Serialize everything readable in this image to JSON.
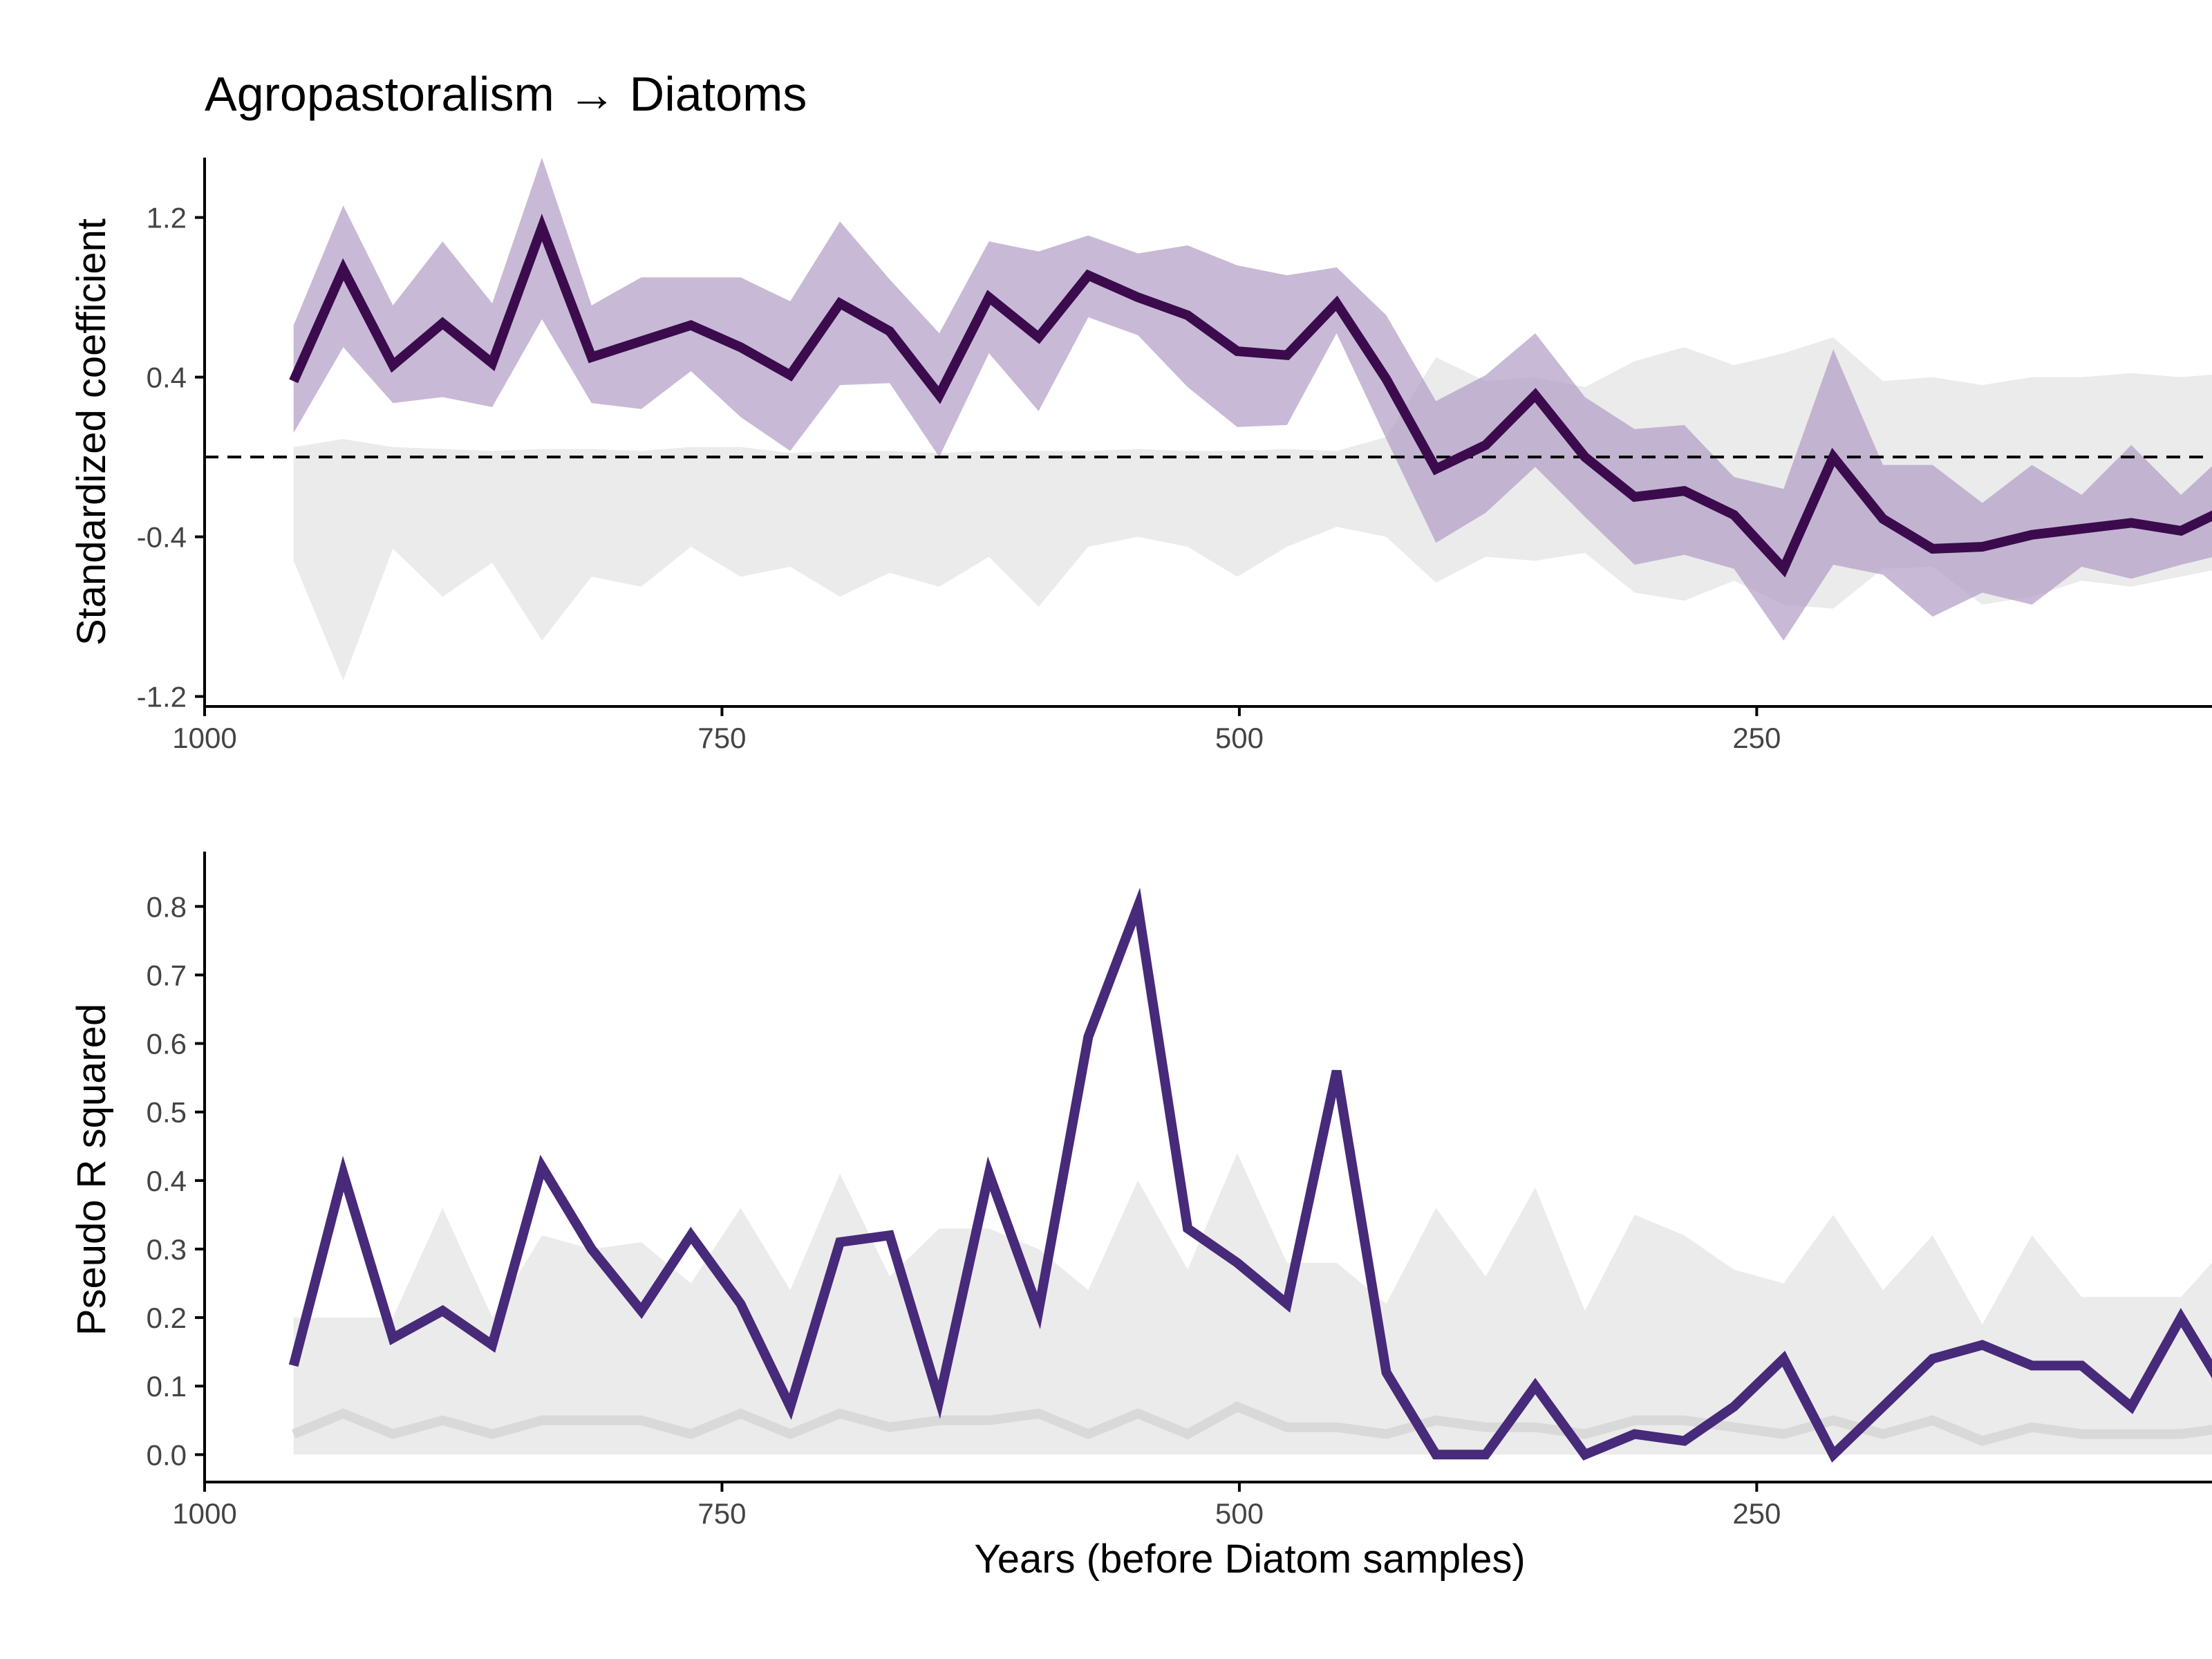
{
  "colors": {
    "coef_line": "#3b0b4d",
    "coef_band": "#b09cc4",
    "null_band": "#ebebeb",
    "r2_line": "#472a7a",
    "r2_null_line": "#d9d9d9",
    "zero_line": "#000000"
  },
  "chart_data": [
    {
      "type": "line",
      "title": "Agropastoralism → Diatoms",
      "xlabel": "",
      "ylabel": "Standardized coefficient",
      "xlim": [
        1000,
        30
      ],
      "ylim": [
        -1.25,
        1.5
      ],
      "x_reversed": true,
      "xticks": [
        1000,
        750,
        500,
        250
      ],
      "xtick_labels": [
        "1000",
        "750",
        "500",
        "250"
      ],
      "yticks": [
        1.2,
        0.4,
        -0.4,
        -1.2
      ],
      "ytick_labels": [
        "1.2",
        "0.4",
        "-0.4",
        "-1.2"
      ],
      "reference_line": {
        "y": 0,
        "style": "dashed"
      },
      "grid": false,
      "x": [
        957,
        933,
        909,
        885,
        861,
        837,
        813,
        789,
        765,
        741,
        717,
        693,
        669,
        645,
        621,
        597,
        573,
        549,
        525,
        501,
        477,
        453,
        429,
        405,
        381,
        357,
        333,
        309,
        285,
        261,
        237,
        213,
        189,
        165,
        141,
        117,
        93,
        69,
        45,
        21
      ],
      "series": [
        {
          "role": "coefficient",
          "values": [
            0.38,
            0.94,
            0.46,
            0.67,
            0.47,
            1.15,
            0.5,
            0.58,
            0.66,
            0.55,
            0.41,
            0.77,
            0.63,
            0.31,
            0.8,
            0.6,
            0.91,
            0.8,
            0.71,
            0.53,
            0.51,
            0.77,
            0.39,
            -0.06,
            0.06,
            0.31,
            0.0,
            -0.2,
            -0.17,
            -0.29,
            -0.56,
            0.0,
            -0.31,
            -0.46,
            -0.45,
            -0.39,
            -0.36,
            -0.33,
            -0.37,
            -0.25
          ]
        },
        {
          "role": "coefficient-ci-upper",
          "values": [
            0.66,
            1.26,
            0.76,
            1.08,
            0.77,
            1.5,
            0.76,
            0.9,
            0.9,
            0.9,
            0.78,
            1.18,
            0.89,
            0.62,
            1.08,
            1.03,
            1.11,
            1.02,
            1.06,
            0.96,
            0.91,
            0.95,
            0.71,
            0.28,
            0.41,
            0.62,
            0.3,
            0.14,
            0.16,
            -0.1,
            -0.16,
            0.54,
            -0.04,
            -0.04,
            -0.23,
            -0.04,
            -0.19,
            0.06,
            -0.19,
            0.04
          ]
        },
        {
          "role": "coefficient-ci-lower",
          "values": [
            0.12,
            0.55,
            0.27,
            0.3,
            0.25,
            0.69,
            0.27,
            0.24,
            0.43,
            0.2,
            0.03,
            0.36,
            0.37,
            0.0,
            0.52,
            0.23,
            0.7,
            0.61,
            0.35,
            0.15,
            0.16,
            0.62,
            0.09,
            -0.43,
            -0.28,
            -0.05,
            -0.3,
            -0.54,
            -0.49,
            -0.56,
            -0.92,
            -0.54,
            -0.59,
            -0.8,
            -0.68,
            -0.74,
            -0.55,
            -0.61,
            -0.54,
            -0.48
          ]
        },
        {
          "role": "null-upper",
          "values": [
            0.05,
            0.09,
            0.05,
            0.04,
            0.03,
            0.04,
            0.04,
            0.03,
            0.05,
            0.05,
            0.02,
            0.03,
            0.03,
            0.02,
            0.03,
            0.03,
            0.03,
            0.04,
            0.03,
            0.03,
            0.04,
            0.03,
            0.1,
            0.5,
            0.38,
            0.4,
            0.35,
            0.48,
            0.55,
            0.46,
            0.52,
            0.6,
            0.38,
            0.4,
            0.36,
            0.4,
            0.4,
            0.42,
            0.4,
            0.42
          ]
        },
        {
          "role": "null-lower",
          "values": [
            -0.52,
            -1.12,
            -0.46,
            -0.7,
            -0.53,
            -0.92,
            -0.6,
            -0.65,
            -0.45,
            -0.6,
            -0.55,
            -0.7,
            -0.58,
            -0.65,
            -0.5,
            -0.75,
            -0.45,
            -0.4,
            -0.45,
            -0.6,
            -0.45,
            -0.35,
            -0.4,
            -0.63,
            -0.5,
            -0.52,
            -0.48,
            -0.68,
            -0.72,
            -0.62,
            -0.74,
            -0.76,
            -0.56,
            -0.55,
            -0.74,
            -0.7,
            -0.62,
            -0.65,
            -0.6,
            -0.55
          ]
        }
      ]
    },
    {
      "type": "line",
      "title": "",
      "xlabel": "Years (before Diatom samples)",
      "ylabel": "Pseudo R squared",
      "xlim": [
        1000,
        30
      ],
      "ylim": [
        -0.04,
        0.88
      ],
      "x_reversed": true,
      "xticks": [
        1000,
        750,
        500,
        250
      ],
      "xtick_labels": [
        "1000",
        "750",
        "500",
        "250"
      ],
      "yticks": [
        0.0,
        0.1,
        0.2,
        0.3,
        0.4,
        0.5,
        0.6,
        0.7,
        0.8
      ],
      "ytick_labels": [
        "0.0",
        "0.1",
        "0.2",
        "0.3",
        "0.4",
        "0.5",
        "0.6",
        "0.7",
        "0.8"
      ],
      "grid": false,
      "x": [
        957,
        933,
        909,
        885,
        861,
        837,
        813,
        789,
        765,
        741,
        717,
        693,
        669,
        645,
        621,
        597,
        573,
        549,
        525,
        501,
        477,
        453,
        429,
        405,
        381,
        357,
        333,
        309,
        285,
        261,
        237,
        213,
        189,
        165,
        141,
        117,
        93,
        69,
        45,
        21
      ],
      "series": [
        {
          "role": "pseudo-r2",
          "values": [
            0.13,
            0.41,
            0.17,
            0.21,
            0.16,
            0.42,
            0.3,
            0.21,
            0.32,
            0.22,
            0.07,
            0.31,
            0.32,
            0.08,
            0.41,
            0.21,
            0.61,
            0.8,
            0.33,
            0.28,
            0.22,
            0.56,
            0.12,
            0.0,
            0.0,
            0.1,
            0.0,
            0.03,
            0.02,
            0.07,
            0.14,
            0.0,
            0.07,
            0.14,
            0.16,
            0.13,
            0.13,
            0.07,
            0.2,
            0.08
          ]
        },
        {
          "role": "null-median",
          "values": [
            0.03,
            0.06,
            0.03,
            0.05,
            0.03,
            0.05,
            0.05,
            0.05,
            0.03,
            0.06,
            0.03,
            0.06,
            0.04,
            0.05,
            0.05,
            0.06,
            0.03,
            0.06,
            0.03,
            0.07,
            0.04,
            0.04,
            0.03,
            0.05,
            0.04,
            0.04,
            0.03,
            0.05,
            0.05,
            0.04,
            0.03,
            0.05,
            0.03,
            0.05,
            0.02,
            0.04,
            0.03,
            0.03,
            0.03,
            0.04
          ]
        },
        {
          "role": "null-upper",
          "values": [
            0.2,
            0.2,
            0.2,
            0.36,
            0.2,
            0.32,
            0.3,
            0.31,
            0.25,
            0.36,
            0.24,
            0.41,
            0.26,
            0.33,
            0.33,
            0.3,
            0.24,
            0.4,
            0.27,
            0.44,
            0.28,
            0.28,
            0.22,
            0.36,
            0.26,
            0.39,
            0.21,
            0.35,
            0.32,
            0.27,
            0.25,
            0.35,
            0.24,
            0.32,
            0.19,
            0.32,
            0.23,
            0.23,
            0.23,
            0.31
          ]
        },
        {
          "role": "null-lower",
          "values": [
            0,
            0,
            0,
            0,
            0,
            0,
            0,
            0,
            0,
            0,
            0,
            0,
            0,
            0,
            0,
            0,
            0,
            0,
            0,
            0,
            0,
            0,
            0,
            0,
            0,
            0,
            0,
            0,
            0,
            0,
            0,
            0,
            0,
            0,
            0,
            0,
            0,
            0,
            0,
            0
          ]
        }
      ]
    }
  ]
}
